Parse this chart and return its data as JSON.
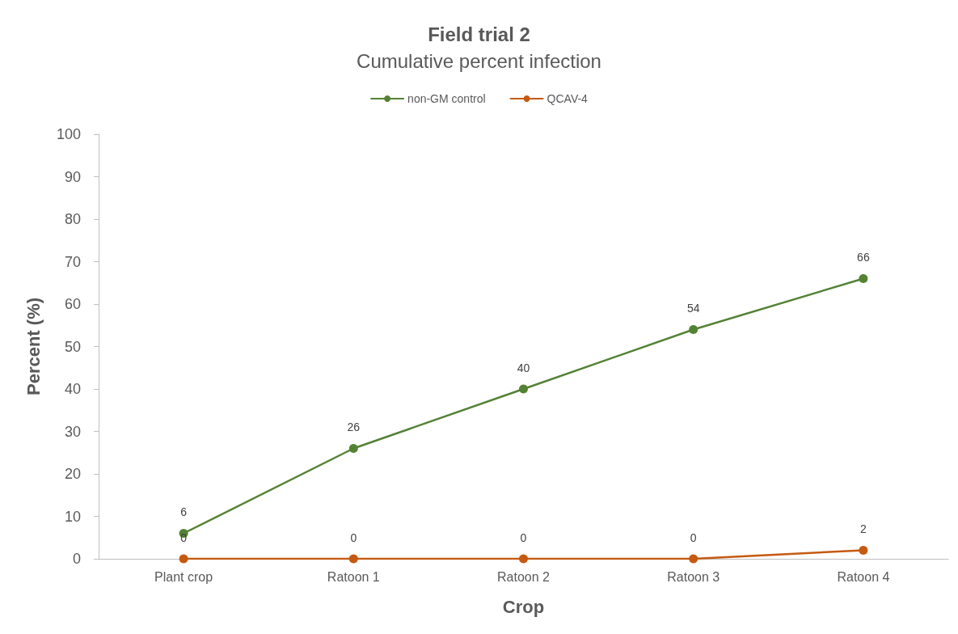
{
  "chart_data": {
    "type": "line",
    "title": "Field trial 2",
    "subtitle": "Cumulative percent infection",
    "xlabel": "Crop",
    "ylabel": "Percent (%)",
    "categories": [
      "Plant crop",
      "Ratoon 1",
      "Ratoon 2",
      "Ratoon 3",
      "Ratoon 4"
    ],
    "series": [
      {
        "name": "non-GM control",
        "color": "#548235",
        "values": [
          6,
          26,
          40,
          54,
          66
        ]
      },
      {
        "name": "QCAV-4",
        "color": "#c55a11",
        "values": [
          0,
          0,
          0,
          0,
          2
        ]
      }
    ],
    "ylim": [
      0,
      100
    ],
    "yticks": [
      0,
      10,
      20,
      30,
      40,
      50,
      60,
      70,
      80,
      90,
      100
    ],
    "grid": false,
    "legend": "top",
    "marker": "circle",
    "line_style": "solid",
    "data_labels": true
  }
}
